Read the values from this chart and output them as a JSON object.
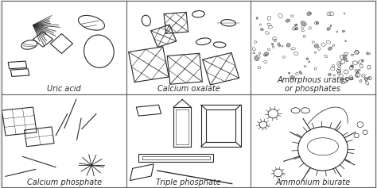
{
  "bg_color": "#e8e8e4",
  "cell_bg": "#ffffff",
  "line_color": "#2a2a2a",
  "border_color": "#666666",
  "labels": [
    "Uric acid",
    "Calcium oxalate",
    "Amorphous urates\nor phosphates",
    "Calcium phosphate",
    "Triple phosphate",
    "Ammonium biurate"
  ],
  "label_fontsize": 7.0,
  "shape_lw": 0.8
}
